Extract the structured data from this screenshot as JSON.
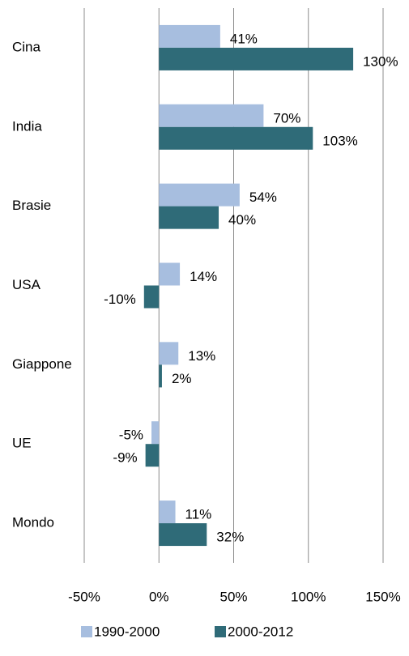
{
  "chart_data": {
    "type": "barh",
    "categories": [
      "Cina",
      "India",
      "Brasie",
      "USA",
      "Giappone",
      "UE",
      "Mondo"
    ],
    "series": [
      {
        "name": "1990-2000",
        "color": "#a7bedf",
        "values": [
          41,
          70,
          54,
          14,
          13,
          -5,
          11
        ],
        "value_labels": [
          "41%",
          "70%",
          "54%",
          "14%",
          "13%",
          "-5%",
          "11%"
        ]
      },
      {
        "name": "2000-2012",
        "color": "#2f6b78",
        "values": [
          130,
          103,
          40,
          -10,
          2,
          -9,
          32
        ],
        "value_labels": [
          "130%",
          "103%",
          "40%",
          "-10%",
          "2%",
          "-9%",
          "32%"
        ]
      }
    ],
    "xlim": [
      -50,
      150
    ],
    "xticks": [
      {
        "value": -50,
        "label": "-50%"
      },
      {
        "value": 0,
        "label": "0%"
      },
      {
        "value": 50,
        "label": "50%"
      },
      {
        "value": 100,
        "label": "100%"
      },
      {
        "value": 150,
        "label": "150%"
      }
    ],
    "grid": true
  }
}
